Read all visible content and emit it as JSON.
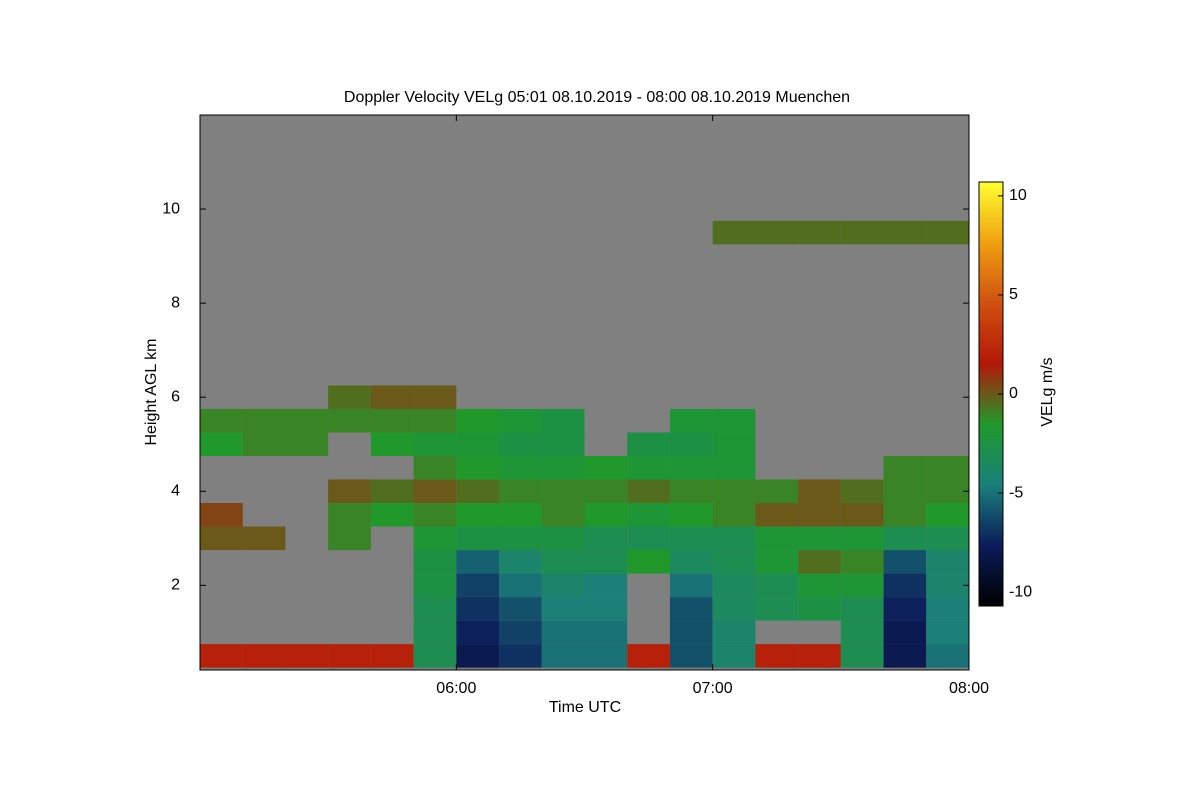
{
  "chart_data": {
    "type": "heatmap",
    "title": "Doppler Velocity VELg   05:01 08.10.2019 - 08:00 08.10.2019 Muenchen",
    "x_label": "Time UTC",
    "y_label": "Height AGL km",
    "colorbar_label": "VELg m/s",
    "x": [
      "05:05",
      "05:15",
      "05:25",
      "05:35",
      "05:45",
      "05:55",
      "06:05",
      "06:15",
      "06:25",
      "06:35",
      "06:45",
      "06:55",
      "07:05",
      "07:15",
      "07:25",
      "07:35",
      "07:45",
      "07:55"
    ],
    "y": [
      0.5,
      1.0,
      1.5,
      2.0,
      2.5,
      3.0,
      3.5,
      4.0,
      4.5,
      5.0,
      5.5,
      6.0,
      6.5,
      7.0,
      7.5,
      8.0,
      8.5,
      9.0,
      9.5,
      10.0,
      10.5,
      11.0,
      11.5
    ],
    "z": [
      [
        2,
        2,
        2,
        2,
        2,
        -3,
        -8,
        -7,
        -5,
        -5,
        2,
        -6,
        -4,
        2,
        2,
        -3,
        -8,
        -5
      ],
      [
        null,
        null,
        null,
        null,
        null,
        -3,
        -7.5,
        -6.5,
        -5,
        -5,
        null,
        -6,
        -4,
        null,
        null,
        -3,
        -8,
        -4.5
      ],
      [
        null,
        null,
        null,
        null,
        null,
        -3,
        -7,
        -6,
        -4.5,
        -4.5,
        null,
        -6,
        -3.5,
        -3,
        -2.5,
        -3,
        -7.5,
        -4.5
      ],
      [
        null,
        null,
        null,
        null,
        null,
        -2.5,
        -6.5,
        -5,
        -4,
        -4.5,
        null,
        -5,
        -3.5,
        -3,
        -2,
        -2,
        -7,
        -4
      ],
      [
        null,
        null,
        null,
        null,
        null,
        -2.5,
        -5.5,
        -4,
        -3,
        -3,
        -1.5,
        -3.5,
        -3,
        -2,
        -0.5,
        -1,
        -6,
        -4
      ],
      [
        0,
        0,
        null,
        -1,
        null,
        -2,
        -2.5,
        -2.5,
        -2.5,
        -3,
        -3,
        -3,
        -3,
        -2,
        -2,
        -2,
        -3,
        -3
      ],
      [
        0.5,
        null,
        null,
        -1,
        -1.5,
        -1,
        -1.5,
        -1.5,
        -1,
        -1.5,
        -2,
        -1.5,
        -1,
        0,
        0,
        0,
        -1,
        -1.5
      ],
      [
        null,
        null,
        null,
        0,
        -0.5,
        0,
        -0.5,
        -1,
        -1,
        -1,
        -0.5,
        -1,
        -1,
        -1,
        0,
        -0.5,
        -1,
        -1
      ],
      [
        null,
        null,
        null,
        null,
        null,
        -1,
        -1.5,
        -2,
        -2,
        -1.5,
        -2,
        -2,
        -2,
        null,
        null,
        null,
        -1,
        -1
      ],
      [
        -1.5,
        -1,
        -1,
        null,
        -1.5,
        -2,
        -2,
        -2.5,
        -2.5,
        null,
        -2.5,
        -2.5,
        -2,
        null,
        null,
        null,
        null,
        null
      ],
      [
        -1,
        -1,
        -1,
        -1,
        -1,
        -1,
        -1.5,
        -2,
        -2.5,
        null,
        null,
        -2,
        -2,
        null,
        null,
        null,
        null,
        null
      ],
      [
        null,
        null,
        null,
        -0.5,
        0,
        0,
        null,
        null,
        null,
        null,
        null,
        null,
        null,
        null,
        null,
        null,
        null,
        null
      ],
      [
        null,
        null,
        null,
        null,
        null,
        null,
        null,
        null,
        null,
        null,
        null,
        null,
        null,
        null,
        null,
        null,
        null,
        null
      ],
      [
        null,
        null,
        null,
        null,
        null,
        null,
        null,
        null,
        null,
        null,
        null,
        null,
        null,
        null,
        null,
        null,
        null,
        null
      ],
      [
        null,
        null,
        null,
        null,
        null,
        null,
        null,
        null,
        null,
        null,
        null,
        null,
        null,
        null,
        null,
        null,
        null,
        null
      ],
      [
        null,
        null,
        null,
        null,
        null,
        null,
        null,
        null,
        null,
        null,
        null,
        null,
        null,
        null,
        null,
        null,
        null,
        null
      ],
      [
        null,
        null,
        null,
        null,
        null,
        null,
        null,
        null,
        null,
        null,
        null,
        null,
        null,
        null,
        null,
        null,
        null,
        null
      ],
      [
        null,
        null,
        null,
        null,
        null,
        null,
        null,
        null,
        null,
        null,
        null,
        null,
        null,
        null,
        null,
        null,
        null,
        null
      ],
      [
        null,
        null,
        null,
        null,
        null,
        null,
        null,
        null,
        null,
        null,
        null,
        null,
        -0.5,
        -0.5,
        -0.5,
        -0.5,
        -0.5,
        -0.5
      ],
      [
        null,
        null,
        null,
        null,
        null,
        null,
        null,
        null,
        null,
        null,
        null,
        null,
        null,
        null,
        null,
        null,
        null,
        null
      ],
      [
        null,
        null,
        null,
        null,
        null,
        null,
        null,
        null,
        null,
        null,
        null,
        null,
        null,
        null,
        null,
        null,
        null,
        null
      ],
      [
        null,
        null,
        null,
        null,
        null,
        null,
        null,
        null,
        null,
        null,
        null,
        null,
        null,
        null,
        null,
        null,
        null,
        null
      ],
      [
        null,
        null,
        null,
        null,
        null,
        null,
        null,
        null,
        null,
        null,
        null,
        null,
        null,
        null,
        null,
        null,
        null,
        null
      ]
    ],
    "xlim": [
      "05:00",
      "08:00"
    ],
    "xticks": [
      "06:00",
      "07:00",
      "08:00"
    ],
    "ylim": [
      0.2,
      12.0
    ],
    "yticks": [
      2,
      4,
      6,
      8,
      10
    ],
    "zlim": [
      -10.7,
      10.7
    ],
    "cticks": [
      -10,
      -5,
      0,
      5,
      10
    ],
    "colormap": [
      "#000000",
      "#0b1c5a",
      "#1a7f7a",
      "#1f9a2a",
      "#b41808",
      "#d05010",
      "#f0a010",
      "#ffff30"
    ],
    "background": "#808080"
  }
}
